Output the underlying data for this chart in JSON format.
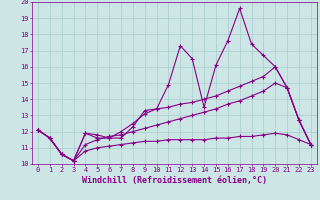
{
  "xlabel": "Windchill (Refroidissement éolien,°C)",
  "background_color": "#cce5e5",
  "grid_color": "#aacccc",
  "line_color": "#880088",
  "xlim": [
    -0.5,
    23.5
  ],
  "ylim": [
    10,
    20
  ],
  "xticks": [
    0,
    1,
    2,
    3,
    4,
    5,
    6,
    7,
    8,
    9,
    10,
    11,
    12,
    13,
    14,
    15,
    16,
    17,
    18,
    19,
    20,
    21,
    22,
    23
  ],
  "yticks": [
    10,
    11,
    12,
    13,
    14,
    15,
    16,
    17,
    18,
    19,
    20
  ],
  "series": [
    [
      12.1,
      11.6,
      10.6,
      10.2,
      11.9,
      11.6,
      11.6,
      11.6,
      12.3,
      13.3,
      13.4,
      14.9,
      17.3,
      16.5,
      13.5,
      16.1,
      17.6,
      19.6,
      17.4,
      16.7,
      16.0,
      14.7,
      12.7,
      11.2
    ],
    [
      12.1,
      11.6,
      10.6,
      10.2,
      11.9,
      11.8,
      11.6,
      12.0,
      12.5,
      13.1,
      13.4,
      13.5,
      13.7,
      13.8,
      14.0,
      14.2,
      14.5,
      14.8,
      15.1,
      15.4,
      16.0,
      14.7,
      12.7,
      11.2
    ],
    [
      12.1,
      11.6,
      10.6,
      10.2,
      11.2,
      11.5,
      11.7,
      11.8,
      12.0,
      12.2,
      12.4,
      12.6,
      12.8,
      13.0,
      13.2,
      13.4,
      13.7,
      13.9,
      14.2,
      14.5,
      15.0,
      14.7,
      12.7,
      11.2
    ],
    [
      12.1,
      11.6,
      10.6,
      10.2,
      10.8,
      11.0,
      11.1,
      11.2,
      11.3,
      11.4,
      11.4,
      11.5,
      11.5,
      11.5,
      11.5,
      11.6,
      11.6,
      11.7,
      11.7,
      11.8,
      11.9,
      11.8,
      11.5,
      11.2
    ]
  ],
  "marker": "+",
  "markersize": 3,
  "linewidth": 0.8,
  "tick_fontsize": 5,
  "xlabel_fontsize": 6,
  "font_family": "monospace"
}
